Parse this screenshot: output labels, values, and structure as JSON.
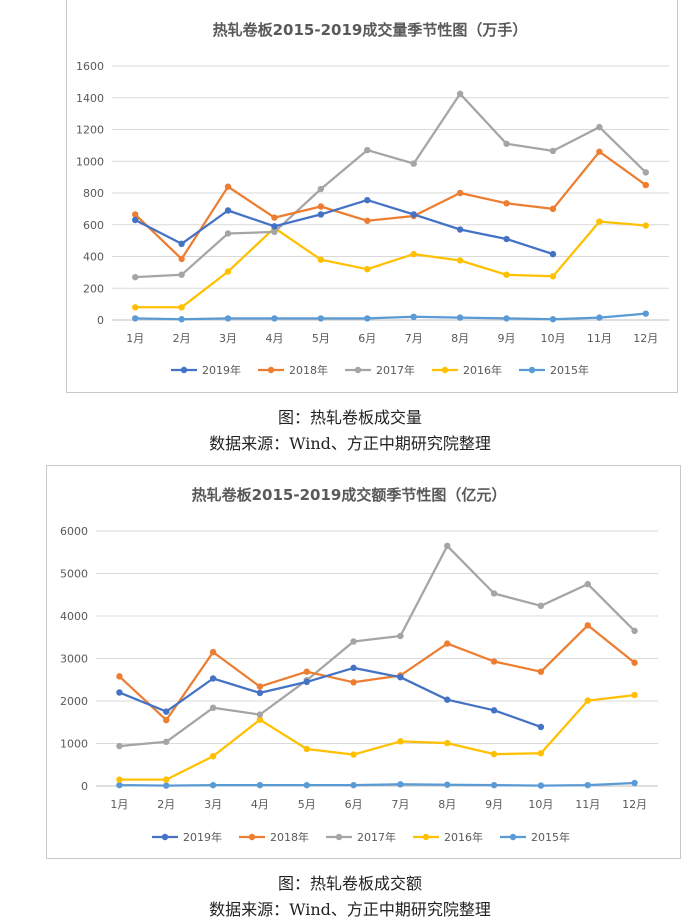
{
  "chart_data": [
    {
      "type": "line",
      "title": "热轧卷板2015-2019成交量季节性图（万手）",
      "categories": [
        "1月",
        "2月",
        "3月",
        "4月",
        "5月",
        "6月",
        "7月",
        "8月",
        "9月",
        "10月",
        "11月",
        "12月"
      ],
      "ylim": [
        0,
        1600
      ],
      "yticks": [
        "0",
        "200",
        "400",
        "600",
        "800",
        "1000",
        "1200",
        "1400",
        "1600"
      ],
      "grid": true,
      "legend": "bottom",
      "series": [
        {
          "name": "2019年",
          "color": "#4472C4",
          "values": [
            630,
            480,
            690,
            590,
            665,
            755,
            665,
            570,
            510,
            415,
            null,
            null
          ]
        },
        {
          "name": "2018年",
          "color": "#ED7D31",
          "values": [
            665,
            385,
            840,
            645,
            715,
            625,
            655,
            800,
            735,
            700,
            1060,
            850
          ]
        },
        {
          "name": "2017年",
          "color": "#A5A5A5",
          "values": [
            270,
            285,
            545,
            555,
            825,
            1070,
            985,
            1425,
            1110,
            1065,
            1215,
            930
          ]
        },
        {
          "name": "2016年",
          "color": "#FFC000",
          "values": [
            80,
            80,
            305,
            580,
            380,
            320,
            415,
            375,
            285,
            275,
            620,
            595
          ]
        },
        {
          "name": "2015年",
          "color": "#5B9BD5",
          "values": [
            10,
            5,
            10,
            10,
            10,
            10,
            20,
            15,
            10,
            5,
            15,
            40
          ]
        }
      ]
    },
    {
      "type": "line",
      "title": "热轧卷板2015-2019成交额季节性图（亿元）",
      "categories": [
        "1月",
        "2月",
        "3月",
        "4月",
        "5月",
        "6月",
        "7月",
        "8月",
        "9月",
        "10月",
        "11月",
        "12月"
      ],
      "ylim": [
        0,
        6000
      ],
      "yticks": [
        "0",
        "1000",
        "2000",
        "3000",
        "4000",
        "5000",
        "6000"
      ],
      "grid": true,
      "legend": "bottom",
      "series": [
        {
          "name": "2019年",
          "color": "#4472C4",
          "values": [
            2200,
            1750,
            2530,
            2190,
            2450,
            2780,
            2560,
            2030,
            1780,
            1390,
            null,
            null
          ]
        },
        {
          "name": "2018年",
          "color": "#ED7D31",
          "values": [
            2580,
            1550,
            3150,
            2340,
            2690,
            2440,
            2600,
            3350,
            2930,
            2690,
            3780,
            2900
          ]
        },
        {
          "name": "2017年",
          "color": "#A5A5A5",
          "values": [
            940,
            1040,
            1840,
            1680,
            2490,
            3400,
            3530,
            5650,
            4530,
            4240,
            4750,
            3650
          ]
        },
        {
          "name": "2016年",
          "color": "#FFC000",
          "values": [
            150,
            150,
            700,
            1560,
            870,
            740,
            1050,
            1010,
            750,
            770,
            2010,
            2140
          ]
        },
        {
          "name": "2015年",
          "color": "#5B9BD5",
          "values": [
            20,
            10,
            20,
            20,
            20,
            20,
            40,
            30,
            20,
            10,
            20,
            70
          ]
        }
      ]
    }
  ],
  "captions": {
    "fig1": "图：热轧卷板成交量",
    "src1": "数据来源：Wind、方正中期研究院整理",
    "fig2": "图：热轧卷板成交额",
    "src2": "数据来源：Wind、方正中期研究院整理"
  }
}
